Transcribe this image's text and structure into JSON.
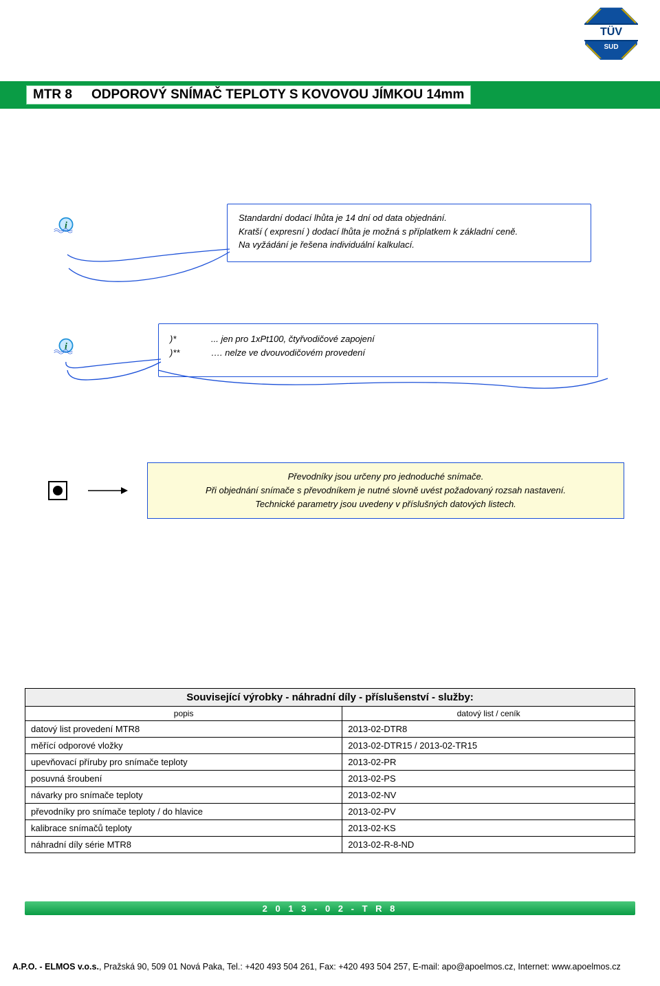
{
  "badge": {
    "main": "TÜV",
    "sub": "SUD"
  },
  "title": {
    "code": "MTR 8",
    "text": "ODPOROVÝ SNÍMAČ TEPLOTY S KOVOVOU JÍMKOU 14mm"
  },
  "info1": {
    "line1": "Standardní dodací lhůta je 14 dní od data objednání.",
    "line2": "Kratší ( expresní ) dodací lhůta je možná s příplatkem k základní ceně.",
    "line3": "Na vyžádání je řešena individuální kalkulací."
  },
  "info2": {
    "sym1": ")*",
    "txt1": "...  jen pro 1xPt100, čtyřvodičové zapojení",
    "sym2": ")**",
    "txt2": "….  nelze ve dvouvodičovém provedení"
  },
  "note": {
    "line1": "Převodníky jsou určeny pro jednoduché snímače.",
    "line2": "Při objednání snímače s převodníkem je nutné slovně uvést požadovaný rozsah nastavení.",
    "line3": "Technické parametry jsou uvedeny v příslušných datových listech."
  },
  "related": {
    "title": "Související výrobky - náhradní díly - příslušenství - služby:",
    "col1": "popis",
    "col2": "datový list / ceník",
    "rows": [
      {
        "desc": "datový list provedení MTR8",
        "ref": "2013-02-DTR8"
      },
      {
        "desc": "měřící odporové vložky",
        "ref": "2013-02-DTR15 / 2013-02-TR15"
      },
      {
        "desc": "upevňovací příruby pro snímače teploty",
        "ref": "2013-02-PR"
      },
      {
        "desc": "posuvná šroubení",
        "ref": "2013-02-PS"
      },
      {
        "desc": "návarky pro snímače teploty",
        "ref": "2013-02-NV"
      },
      {
        "desc": "převodníky pro snímače teploty / do hlavice",
        "ref": "2013-02-PV"
      },
      {
        "desc": "kalibrace snímačů teploty",
        "ref": "2013-02-KS"
      },
      {
        "desc": "náhradní díly série MTR8",
        "ref": "2013-02-R-8-ND"
      }
    ]
  },
  "footer_code_bar": "2 0 1 3 - 0 2 - T R 8",
  "company": {
    "name": "A.P.O. - ELMOS v.o.s.",
    "rest": ", Pražská 90, 509 01 Nová Paka, Tel.: +420 493 504 261, Fax: +420 493 504 257, E-mail: apo@apoelmos.cz, Internet: www.apoelmos.cz"
  },
  "colors": {
    "green": "#0a9c45",
    "blue_border": "#1a4fd8",
    "note_bg": "#fdfbd8",
    "grey_head": "#eeeeee"
  }
}
